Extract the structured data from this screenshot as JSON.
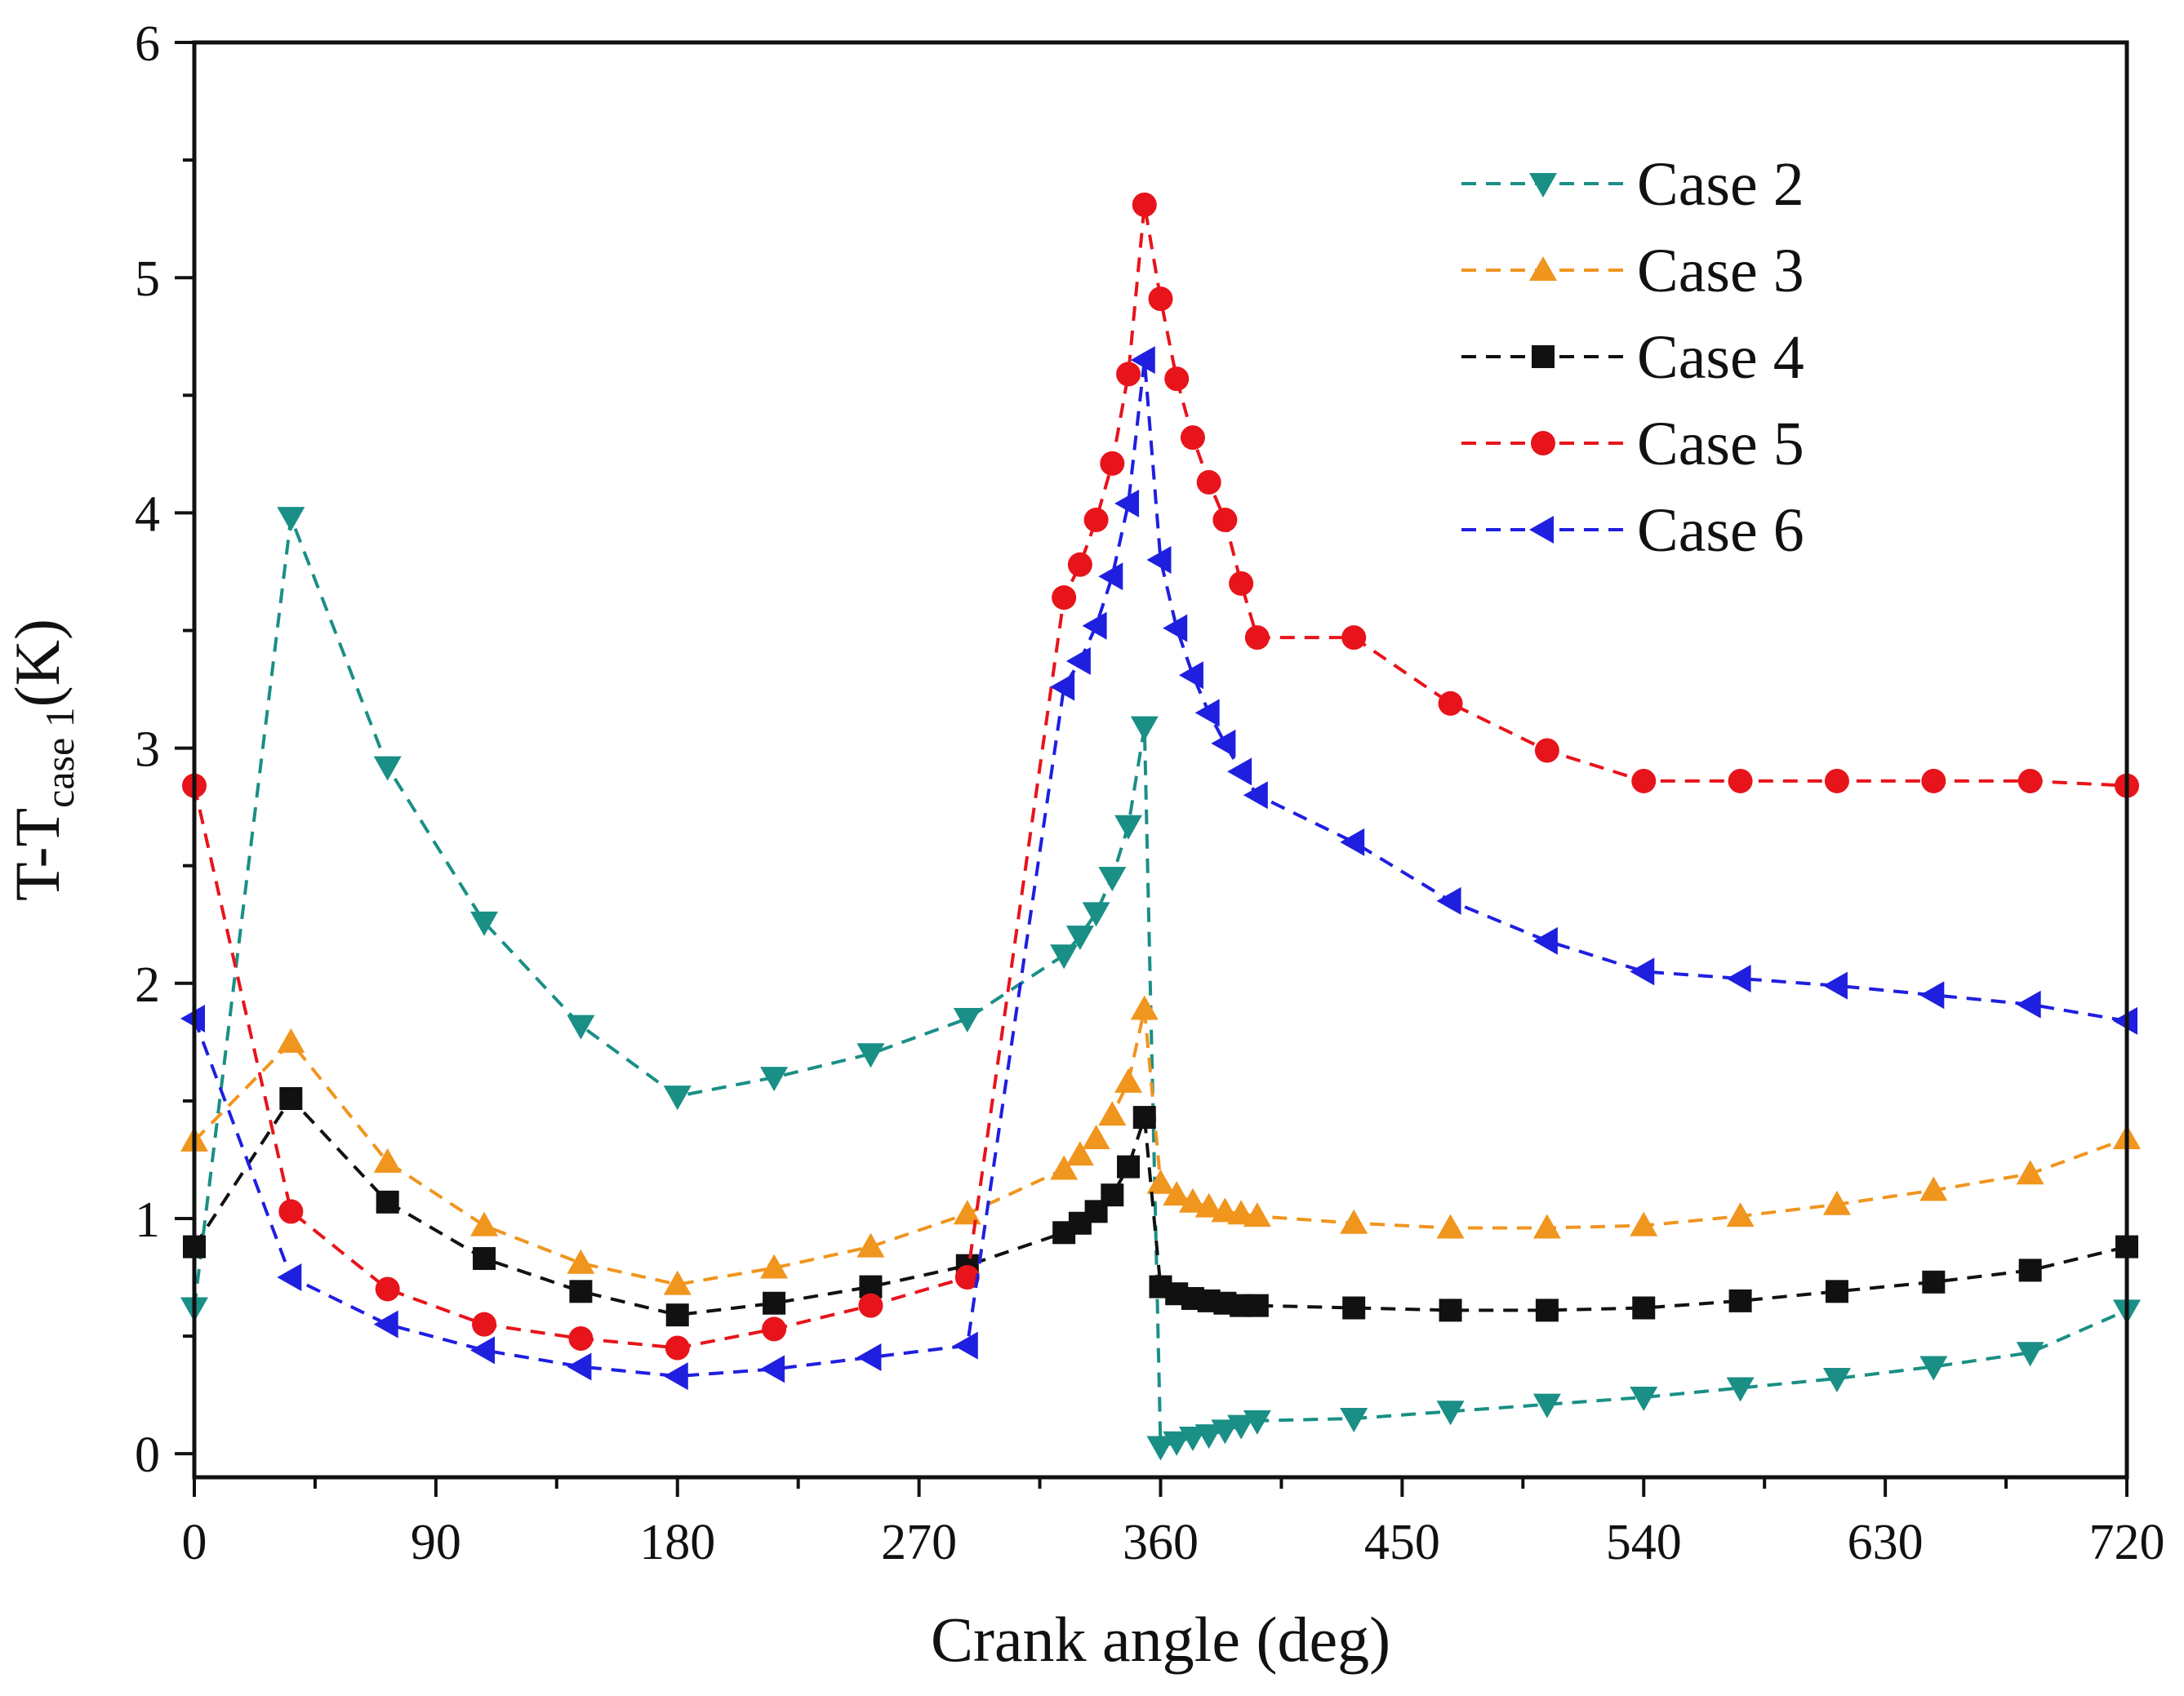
{
  "chart_data": {
    "type": "line",
    "title": "",
    "xlabel": "Crank angle (deg)",
    "ylabel": {
      "main": "T-T",
      "subscript": "case 1",
      "unit": "(K)"
    },
    "xlim": [
      0,
      720
    ],
    "ylim": [
      -0.1,
      6
    ],
    "xticks": [
      0,
      90,
      180,
      270,
      360,
      450,
      540,
      630,
      720
    ],
    "yticks": [
      0,
      1,
      2,
      3,
      4,
      5,
      6
    ],
    "grid": false,
    "legend_position": "top-right",
    "series": [
      {
        "name": "Case 2",
        "color": "#1a8f86",
        "marker": "triangle-down",
        "x": [
          0,
          36,
          72,
          108,
          144,
          180,
          216,
          252,
          288,
          324,
          330,
          336,
          342,
          348,
          354,
          360,
          366,
          372,
          378,
          384,
          390,
          396,
          432,
          468,
          504,
          540,
          576,
          612,
          648,
          684,
          720
        ],
        "y": [
          0.62,
          3.98,
          2.92,
          2.26,
          1.82,
          1.52,
          1.6,
          1.7,
          1.85,
          2.12,
          2.2,
          2.3,
          2.45,
          2.67,
          3.09,
          0.03,
          0.05,
          0.07,
          0.08,
          0.1,
          0.12,
          0.14,
          0.15,
          0.18,
          0.21,
          0.24,
          0.28,
          0.32,
          0.37,
          0.43,
          0.61
        ]
      },
      {
        "name": "Case 3",
        "color": "#f0951e",
        "marker": "triangle-up",
        "x": [
          0,
          36,
          72,
          108,
          144,
          180,
          216,
          252,
          288,
          324,
          330,
          336,
          342,
          348,
          354,
          360,
          366,
          372,
          378,
          384,
          390,
          396,
          432,
          468,
          504,
          540,
          576,
          612,
          648,
          684,
          720
        ],
        "y": [
          1.33,
          1.75,
          1.24,
          0.97,
          0.81,
          0.72,
          0.79,
          0.88,
          1.02,
          1.21,
          1.27,
          1.34,
          1.44,
          1.58,
          1.89,
          1.15,
          1.1,
          1.07,
          1.05,
          1.03,
          1.02,
          1.01,
          0.98,
          0.96,
          0.96,
          0.97,
          1.01,
          1.06,
          1.12,
          1.19,
          1.34
        ]
      },
      {
        "name": "Case 4",
        "color": "#111111",
        "marker": "square",
        "x": [
          0,
          36,
          72,
          108,
          144,
          180,
          216,
          252,
          288,
          324,
          330,
          336,
          342,
          348,
          354,
          360,
          366,
          372,
          378,
          384,
          390,
          396,
          432,
          468,
          504,
          540,
          576,
          612,
          648,
          684,
          720
        ],
        "y": [
          0.88,
          1.51,
          1.07,
          0.83,
          0.69,
          0.59,
          0.64,
          0.71,
          0.8,
          0.94,
          0.98,
          1.03,
          1.1,
          1.22,
          1.43,
          0.71,
          0.68,
          0.66,
          0.65,
          0.64,
          0.63,
          0.63,
          0.62,
          0.61,
          0.61,
          0.62,
          0.65,
          0.69,
          0.73,
          0.78,
          0.88
        ]
      },
      {
        "name": "Case 5",
        "color": "#e8141b",
        "marker": "circle",
        "x": [
          0,
          36,
          72,
          108,
          144,
          180,
          216,
          252,
          288,
          324,
          330,
          336,
          342,
          348,
          354,
          360,
          366,
          372,
          378,
          384,
          390,
          396,
          432,
          468,
          504,
          540,
          576,
          612,
          648,
          684,
          720
        ],
        "y": [
          2.84,
          1.03,
          0.7,
          0.55,
          0.49,
          0.45,
          0.53,
          0.63,
          0.75,
          3.64,
          3.78,
          3.97,
          4.21,
          4.59,
          5.31,
          4.91,
          4.57,
          4.32,
          4.13,
          3.97,
          3.7,
          3.47,
          3.47,
          3.19,
          2.99,
          2.86,
          2.86,
          2.86,
          2.86,
          2.86,
          2.84
        ]
      },
      {
        "name": "Case 6",
        "color": "#1f1fe0",
        "marker": "triangle-left",
        "x": [
          0,
          36,
          72,
          108,
          144,
          180,
          216,
          252,
          288,
          324,
          330,
          336,
          342,
          348,
          354,
          360,
          366,
          372,
          378,
          384,
          390,
          396,
          432,
          468,
          504,
          540,
          576,
          612,
          648,
          684,
          720
        ],
        "y": [
          1.85,
          0.75,
          0.55,
          0.44,
          0.37,
          0.33,
          0.36,
          0.41,
          0.46,
          3.26,
          3.37,
          3.52,
          3.73,
          4.04,
          4.65,
          3.8,
          3.51,
          3.31,
          3.15,
          3.02,
          2.9,
          2.8,
          2.6,
          2.35,
          2.18,
          2.05,
          2.02,
          1.99,
          1.95,
          1.91,
          1.84
        ]
      }
    ]
  }
}
